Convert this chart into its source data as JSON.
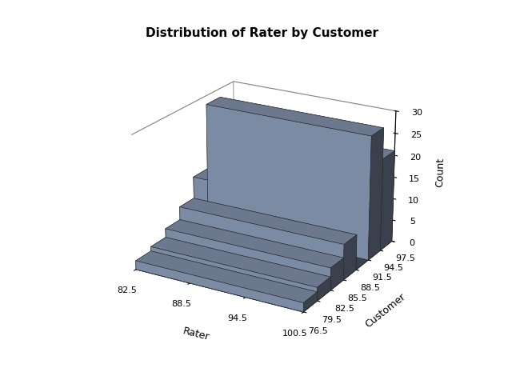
{
  "title": "Distribution of Rater by Customer",
  "xlabel": "Rater",
  "ylabel": "Customer",
  "zlabel": "Count",
  "rater_ticks": [
    82.5,
    88.5,
    94.5,
    100.5
  ],
  "customer_ticks": [
    76.5,
    79.5,
    82.5,
    85.5,
    88.5,
    91.5,
    94.5,
    97.5
  ],
  "zlim": [
    0,
    30
  ],
  "zticks": [
    0,
    5,
    10,
    15,
    20,
    25,
    30
  ],
  "bar_color": "#8b9db8",
  "bar_edge_color": "#2a2a2a",
  "heights": [
    2,
    3,
    5,
    8,
    13,
    28,
    21,
    12
  ],
  "figsize": [
    6.4,
    4.8
  ],
  "dpi": 100,
  "background_color": "#ffffff",
  "elev": 22,
  "azim": -60
}
